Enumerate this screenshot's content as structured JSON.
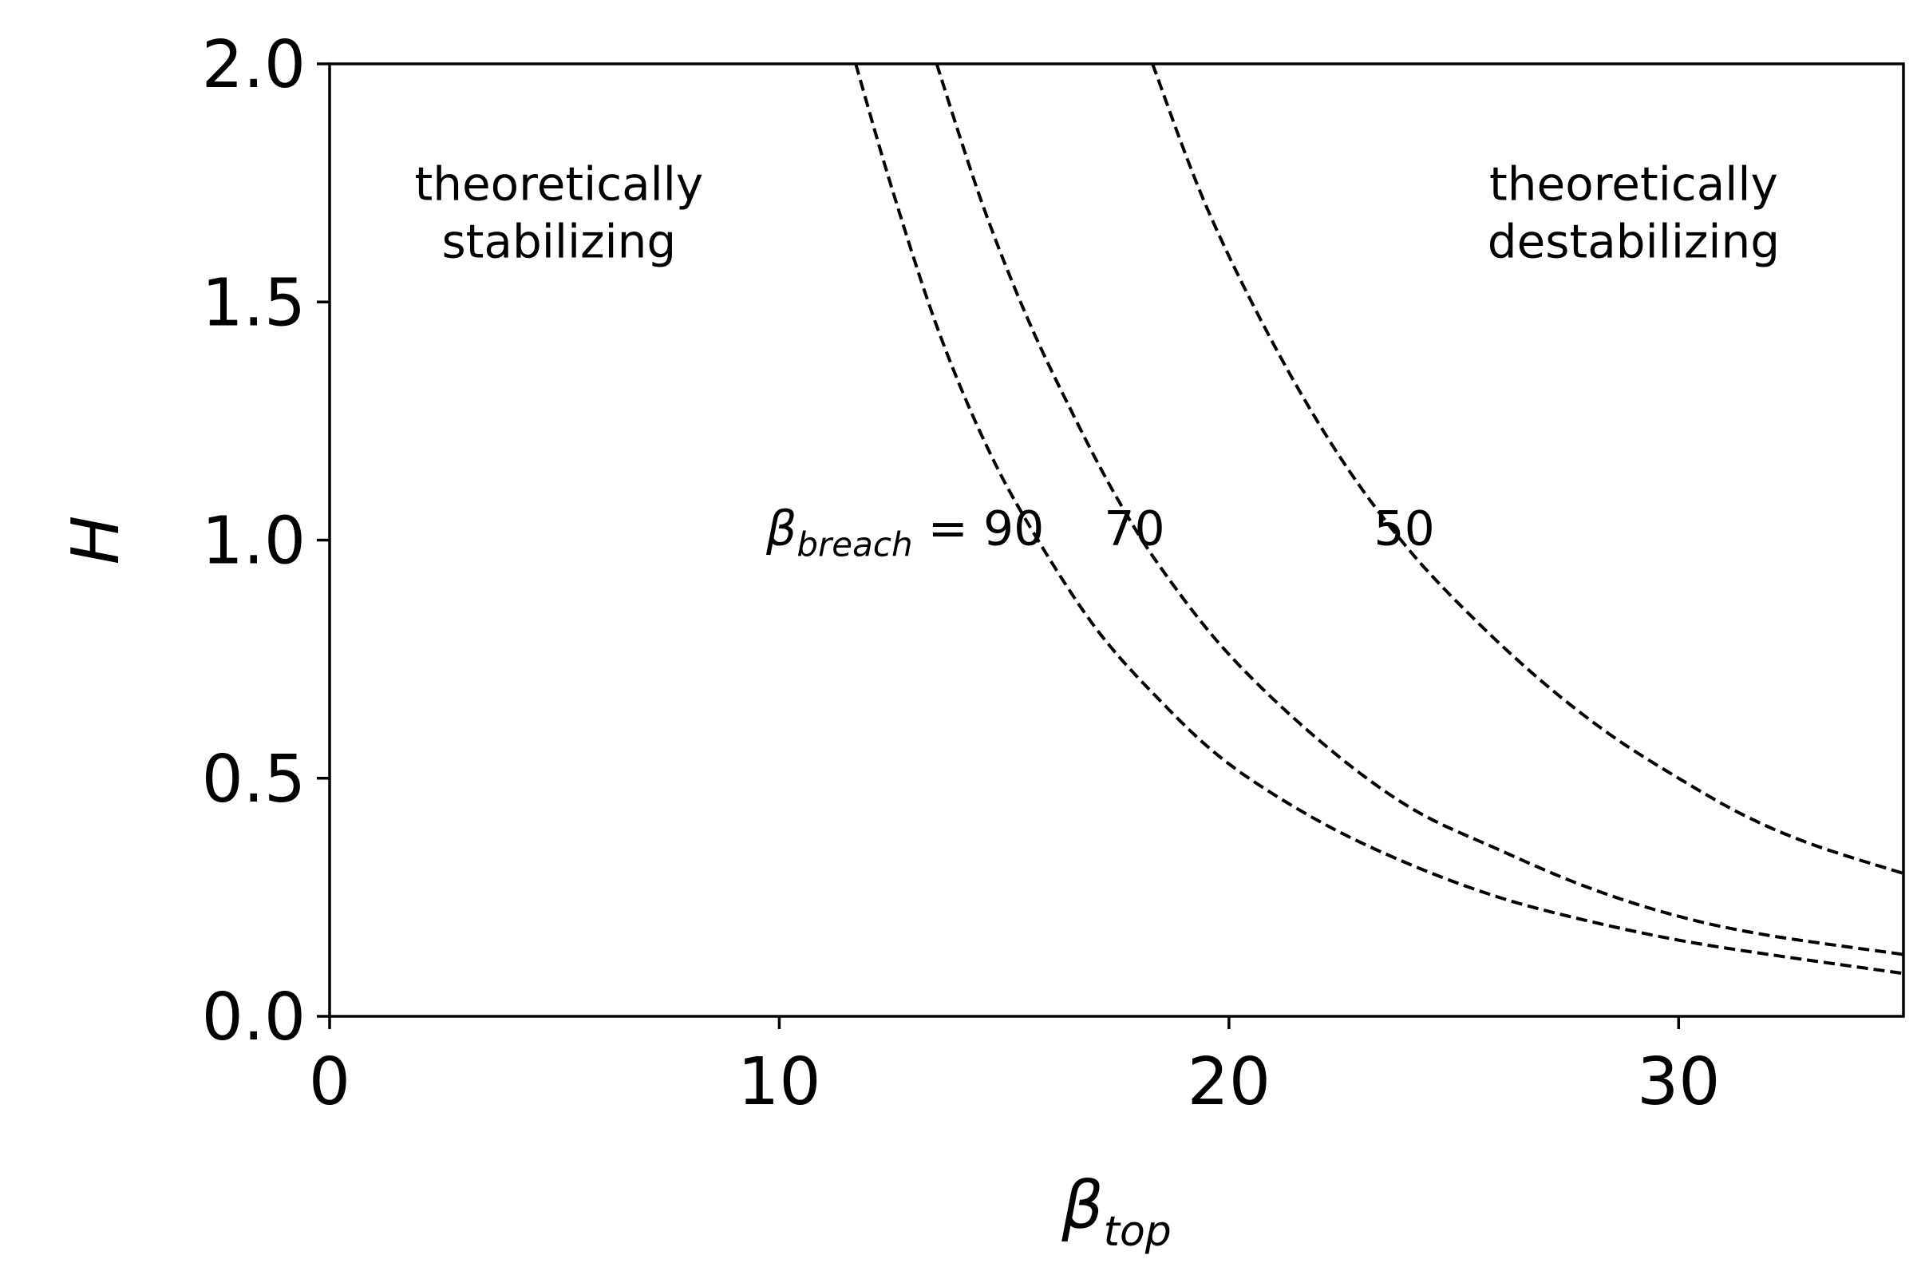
{
  "chart_data": {
    "type": "line",
    "xlabel": {
      "main": "β",
      "sub": "top"
    },
    "ylabel": "H",
    "xlim": [
      0,
      35
    ],
    "ylim": [
      0,
      2.0
    ],
    "xticks": [
      0,
      10,
      20,
      30
    ],
    "xtick_labels": [
      "0",
      "10",
      "20",
      "30"
    ],
    "yticks": [
      0.0,
      0.5,
      1.0,
      1.5,
      2.0
    ],
    "ytick_labels": [
      "0.0",
      "0.5",
      "1.0",
      "1.5",
      "2.0"
    ],
    "grid": false,
    "line_style": "dashed",
    "line_color": "#000000",
    "series": [
      {
        "label_value": "90",
        "x": [
          11.7,
          12.5,
          13.5,
          14.5,
          15.5,
          17,
          18.5,
          20,
          22,
          24,
          26,
          28,
          30,
          32,
          35
        ],
        "y": [
          2.0,
          1.74,
          1.45,
          1.22,
          1.04,
          0.82,
          0.66,
          0.53,
          0.41,
          0.32,
          0.25,
          0.2,
          0.16,
          0.13,
          0.09
        ]
      },
      {
        "label_value": "70",
        "x": [
          13.5,
          14.5,
          15.5,
          16.5,
          17.5,
          18.5,
          20,
          22,
          24,
          26,
          28,
          30,
          32,
          35
        ],
        "y": [
          2.0,
          1.71,
          1.47,
          1.27,
          1.09,
          0.94,
          0.76,
          0.58,
          0.44,
          0.35,
          0.27,
          0.21,
          0.17,
          0.13
        ]
      },
      {
        "label_value": "50",
        "x": [
          18.3,
          19.5,
          21,
          22.5,
          24,
          25.5,
          27,
          28.5,
          30,
          31.5,
          33,
          35
        ],
        "y": [
          2.0,
          1.7,
          1.41,
          1.17,
          0.98,
          0.83,
          0.7,
          0.59,
          0.5,
          0.42,
          0.36,
          0.3
        ]
      }
    ],
    "curve_labels": {
      "prefix_symbol": "β",
      "prefix_sub": "breach",
      "equals": "=",
      "label_y": 1.0,
      "positions_x": [
        12.8,
        17.9,
        23.9
      ]
    },
    "annotations": [
      {
        "lines": [
          "theoretically",
          "stabilizing"
        ],
        "x": 5.1,
        "y": 1.63
      },
      {
        "lines": [
          "theoretically",
          "destabilizing"
        ],
        "x": 29.0,
        "y": 1.63
      }
    ]
  }
}
